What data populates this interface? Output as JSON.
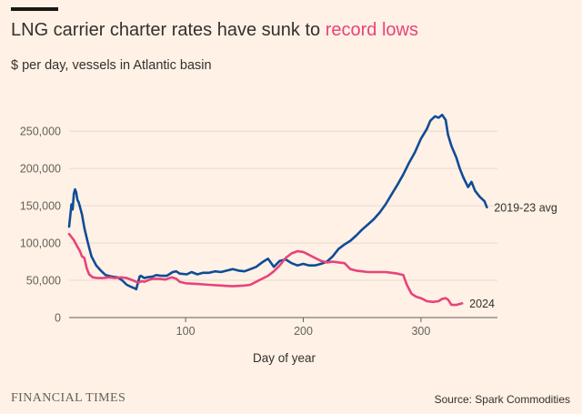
{
  "header": {
    "title_main": "LNG carrier charter rates have sunk to ",
    "title_highlight": "record lows",
    "subtitle": "$ per day, vessels in Atlantic basin"
  },
  "footer": {
    "brand": "FINANCIAL TIMES",
    "source": "Source: Spark Commodities"
  },
  "colors": {
    "background": "#fff1e5",
    "avg_series": "#0f4c96",
    "series_2024": "#e8437a",
    "grid": "#e6d9ce"
  },
  "chart_data": {
    "type": "line",
    "title": "LNG carrier charter rates have sunk to record lows",
    "subtitle": "$ per day, vessels in Atlantic basin",
    "xlabel": "Day of year",
    "ylabel": "",
    "xlim": [
      1,
      365
    ],
    "ylim": [
      0,
      260000
    ],
    "x_ticks": [
      100,
      200,
      300
    ],
    "y_ticks": [
      0,
      50000,
      100000,
      150000,
      200000,
      250000
    ],
    "y_tick_labels": [
      "0",
      "50,000",
      "100,000",
      "150,000",
      "200,000",
      "250,000"
    ],
    "grid": true,
    "series": [
      {
        "name": "2019-23 avg",
        "label": "2019-23 avg",
        "color": "#0f4c96",
        "x": [
          1,
          3,
          4,
          5,
          6,
          7,
          8,
          9,
          10,
          12,
          14,
          17,
          20,
          24,
          28,
          32,
          37,
          42,
          46,
          50,
          54,
          57,
          58,
          61,
          62,
          65,
          67,
          72,
          75,
          79,
          84,
          89,
          92,
          95,
          101,
          105,
          110,
          115,
          120,
          125,
          130,
          135,
          140,
          145,
          150,
          155,
          160,
          165,
          170,
          175,
          180,
          185,
          190,
          195,
          200,
          205,
          210,
          215,
          220,
          225,
          230,
          235,
          240,
          245,
          250,
          255,
          260,
          265,
          270,
          275,
          280,
          285,
          290,
          295,
          300,
          305,
          308,
          312,
          315,
          318,
          321,
          323,
          326,
          330,
          333,
          336,
          340,
          343,
          346,
          350,
          354,
          356
        ],
        "y": [
          122000,
          152000,
          145000,
          166000,
          172000,
          168000,
          158000,
          155000,
          150000,
          138000,
          120000,
          100000,
          82000,
          70000,
          63000,
          57000,
          55000,
          54000,
          50000,
          44000,
          41000,
          39000,
          38000,
          55000,
          56000,
          53000,
          54000,
          55000,
          57000,
          56000,
          56000,
          61000,
          62000,
          59000,
          58000,
          61000,
          58000,
          60000,
          60000,
          62000,
          61000,
          63000,
          65000,
          63000,
          62000,
          65000,
          68000,
          74000,
          79000,
          68000,
          76000,
          78000,
          73000,
          70000,
          72000,
          70000,
          70000,
          72000,
          75000,
          82000,
          92000,
          98000,
          103000,
          110000,
          118000,
          125000,
          132000,
          141000,
          152000,
          165000,
          178000,
          192000,
          208000,
          222000,
          240000,
          253000,
          264000,
          270000,
          268000,
          272000,
          265000,
          245000,
          230000,
          215000,
          200000,
          188000,
          175000,
          182000,
          170000,
          162000,
          156000,
          148000
        ]
      },
      {
        "name": "2024",
        "label": "2024",
        "color": "#e8437a",
        "x": [
          1,
          3,
          5,
          8,
          10,
          12,
          14,
          16,
          18,
          21,
          25,
          30,
          35,
          40,
          45,
          50,
          55,
          58,
          60,
          63,
          65,
          68,
          72,
          77,
          83,
          88,
          92,
          95,
          100,
          110,
          120,
          130,
          140,
          150,
          155,
          160,
          165,
          170,
          175,
          180,
          185,
          190,
          195,
          200,
          205,
          210,
          215,
          220,
          225,
          230,
          235,
          240,
          245,
          250,
          255,
          260,
          265,
          270,
          275,
          280,
          285,
          288,
          292,
          296,
          300,
          305,
          310,
          315,
          318,
          321,
          323,
          326,
          330,
          335
        ],
        "y": [
          112000,
          108000,
          104000,
          95000,
          90000,
          82000,
          80000,
          66000,
          58000,
          54000,
          53000,
          53000,
          54000,
          53000,
          54000,
          53000,
          50000,
          48000,
          47000,
          49000,
          48000,
          50000,
          52000,
          52000,
          51000,
          54000,
          52000,
          48000,
          46000,
          45000,
          44000,
          43000,
          42000,
          43000,
          44000,
          48000,
          52000,
          56000,
          62000,
          70000,
          80000,
          86000,
          89000,
          88000,
          84000,
          80000,
          76000,
          74000,
          75000,
          74000,
          73000,
          65000,
          63000,
          62000,
          61000,
          61000,
          61000,
          61000,
          60000,
          59000,
          57000,
          44000,
          32000,
          28000,
          26000,
          22000,
          21000,
          22000,
          25000,
          26000,
          24000,
          17000,
          17000,
          19000
        ]
      }
    ]
  }
}
